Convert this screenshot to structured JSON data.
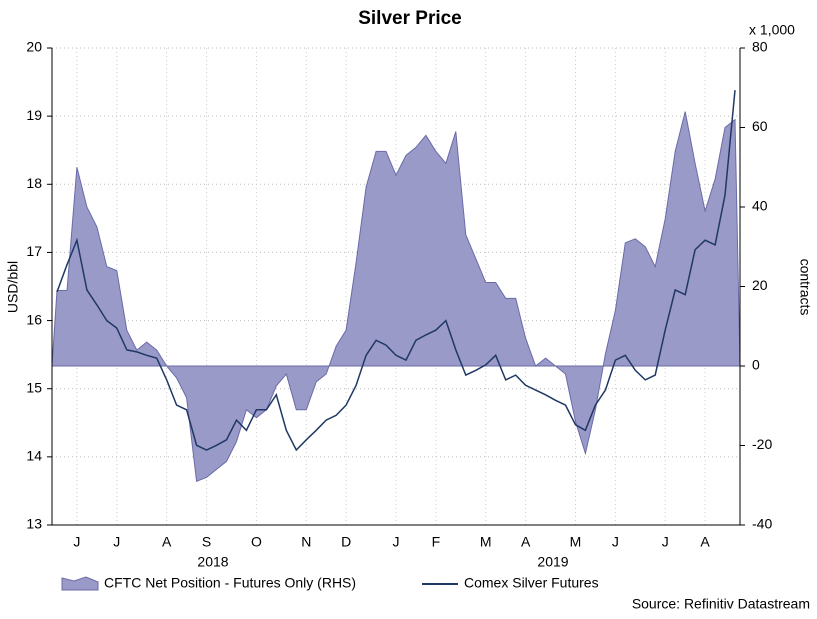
{
  "chart_data": {
    "type": "area_line",
    "title": "Silver Price",
    "ylabel": "USD/bbl",
    "y2label": "contracts",
    "y2unit": "x 1,000",
    "source": "Source: Refinitiv Datastream",
    "years": [
      "2018",
      "2019"
    ],
    "categories": [
      null,
      null,
      "J",
      null,
      null,
      null,
      "J",
      null,
      null,
      null,
      null,
      "A",
      null,
      null,
      null,
      "S",
      null,
      null,
      null,
      null,
      "O",
      null,
      null,
      null,
      null,
      "N",
      null,
      null,
      null,
      "D",
      null,
      null,
      null,
      null,
      "J",
      null,
      null,
      null,
      "F",
      null,
      null,
      null,
      null,
      "M",
      null,
      null,
      null,
      "A",
      null,
      null,
      null,
      null,
      "M",
      null,
      null,
      null,
      "J",
      null,
      null,
      null,
      null,
      "J",
      null,
      null,
      null,
      "A",
      null,
      null,
      null
    ],
    "series": [
      {
        "name": "CFTC Net Position - Futures Only (RHS)",
        "color": "#9a9ac9",
        "axis": "y2",
        "values": [
          19,
          19,
          50,
          40,
          35,
          25,
          24,
          9,
          4,
          6,
          4,
          0,
          -3,
          -8,
          -29,
          -28,
          -26,
          -24,
          -19,
          -11,
          -13,
          -11,
          -5,
          -2,
          -11,
          -11,
          -4,
          -2,
          5,
          9,
          26,
          45,
          54,
          54,
          48,
          53,
          55,
          58,
          54,
          51,
          59,
          33,
          27,
          21,
          21,
          17,
          17,
          7,
          0,
          2,
          0,
          -2,
          -14,
          -22,
          -11,
          3,
          14,
          31,
          32,
          30,
          25,
          37,
          54,
          64,
          51,
          39,
          47,
          60,
          62
        ]
      },
      {
        "name": "Comex Silver Futures",
        "color": "#1f3864",
        "values": [
          16.42,
          16.82,
          17.18,
          16.45,
          16.23,
          16.0,
          15.89,
          15.57,
          15.54,
          15.49,
          15.45,
          15.13,
          14.76,
          14.69,
          14.17,
          14.1,
          14.17,
          14.25,
          14.54,
          14.39,
          14.69,
          14.69,
          14.91,
          14.39,
          14.1,
          14.25,
          14.39,
          14.54,
          14.61,
          14.76,
          15.05,
          15.49,
          15.71,
          15.64,
          15.49,
          15.42,
          15.71,
          15.79,
          15.86,
          16.0,
          15.57,
          15.2,
          15.27,
          15.35,
          15.49,
          15.13,
          15.2,
          15.05,
          14.98,
          14.91,
          14.83,
          14.76,
          14.47,
          14.39,
          14.76,
          14.98,
          15.42,
          15.49,
          15.27,
          15.13,
          15.2,
          15.86,
          16.45,
          16.38,
          17.04,
          17.18,
          17.11,
          17.84,
          19.38
        ]
      }
    ],
    "ylim": [
      13,
      20
    ],
    "yticks": [
      13,
      14,
      15,
      16,
      17,
      18,
      19,
      20
    ],
    "y2lim": [
      -40,
      80
    ],
    "y2ticks": [
      -40,
      -20,
      0,
      20,
      40,
      60,
      80
    ],
    "grid": true
  }
}
